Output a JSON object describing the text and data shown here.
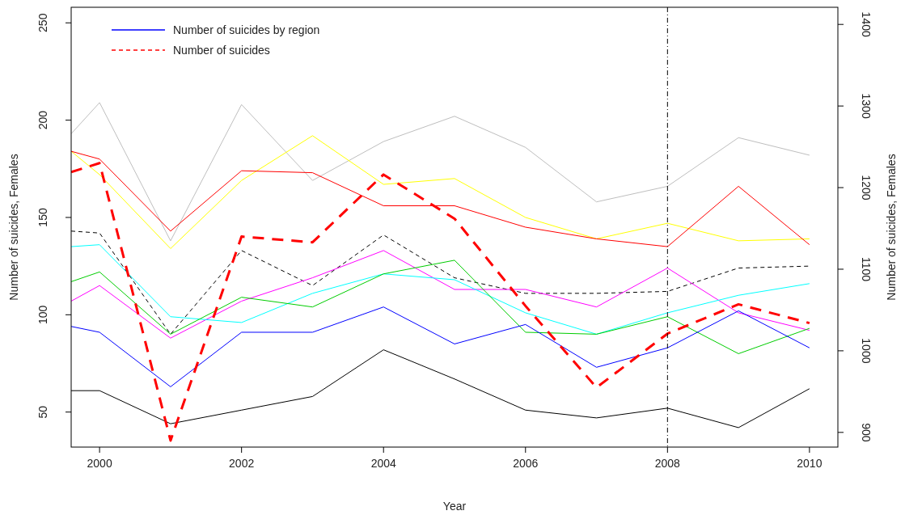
{
  "chart_data": {
    "type": "line",
    "xlabel": "Year",
    "ylabel": "Number of suicides, Females",
    "y2label": "Number of suicides, Females",
    "x": [
      1999.6,
      2000,
      2001,
      2002,
      2003,
      2004,
      2005,
      2006,
      2007,
      2008,
      2009,
      2010
    ],
    "xlim": [
      1999.6,
      2010.4
    ],
    "xticks": [
      2000,
      2002,
      2004,
      2006,
      2008,
      2010
    ],
    "ylim": [
      32,
      258
    ],
    "yticks": [
      50,
      100,
      150,
      200,
      250
    ],
    "y2lim": [
      882,
      1421
    ],
    "y2ticks": [
      900,
      1000,
      1100,
      1200,
      1300,
      1400
    ],
    "grid": false,
    "legend": "top left",
    "marker": "none",
    "ref_lines": [
      {
        "axis": "x",
        "value": 2008,
        "color": "#000000",
        "line_style": "dashdot"
      }
    ],
    "series": [
      {
        "color": "#bebebe",
        "values": [
          193,
          209,
          138,
          208,
          169,
          189,
          202,
          186,
          158,
          166,
          191,
          182
        ]
      },
      {
        "color": "#ffff00",
        "values": [
          184,
          172,
          134,
          169,
          192,
          167,
          170,
          150,
          139,
          147,
          138,
          139
        ]
      },
      {
        "color": "#ff0000",
        "values": [
          184,
          180,
          143,
          174,
          173,
          156,
          156,
          145,
          139,
          135,
          166,
          136
        ]
      },
      {
        "color": "#000000",
        "line_style": "dashed",
        "values": [
          143,
          142,
          90,
          133,
          115,
          141,
          119,
          111,
          111,
          112,
          124,
          125
        ]
      },
      {
        "color": "#ff00ff",
        "values": [
          107,
          115,
          88,
          107,
          119,
          133,
          113,
          113,
          104,
          124,
          101,
          92
        ]
      },
      {
        "color": "#00ffff",
        "values": [
          135,
          136,
          99,
          96,
          111,
          121,
          118,
          101,
          90,
          101,
          110,
          116
        ]
      },
      {
        "color": "#00cd00",
        "values": [
          117,
          122,
          90,
          109,
          104,
          121,
          128,
          91,
          90,
          99,
          80,
          93
        ]
      },
      {
        "name": "Number of suicides by region",
        "color": "#0000ff",
        "values": [
          94,
          91,
          63,
          91,
          91,
          104,
          85,
          95,
          73,
          83,
          102,
          83
        ]
      },
      {
        "color": "#000000",
        "values": [
          61,
          61,
          44,
          51,
          58,
          82,
          67,
          51,
          47,
          52,
          42,
          62
        ]
      },
      {
        "name": "Number of suicides",
        "color": "#ff0000",
        "line_style": "dashed",
        "axis": "y2",
        "values": [
          1219,
          1230,
          890,
          1140,
          1133,
          1216,
          1162,
          1055,
          955,
          1021,
          1057,
          1034
        ]
      }
    ]
  }
}
